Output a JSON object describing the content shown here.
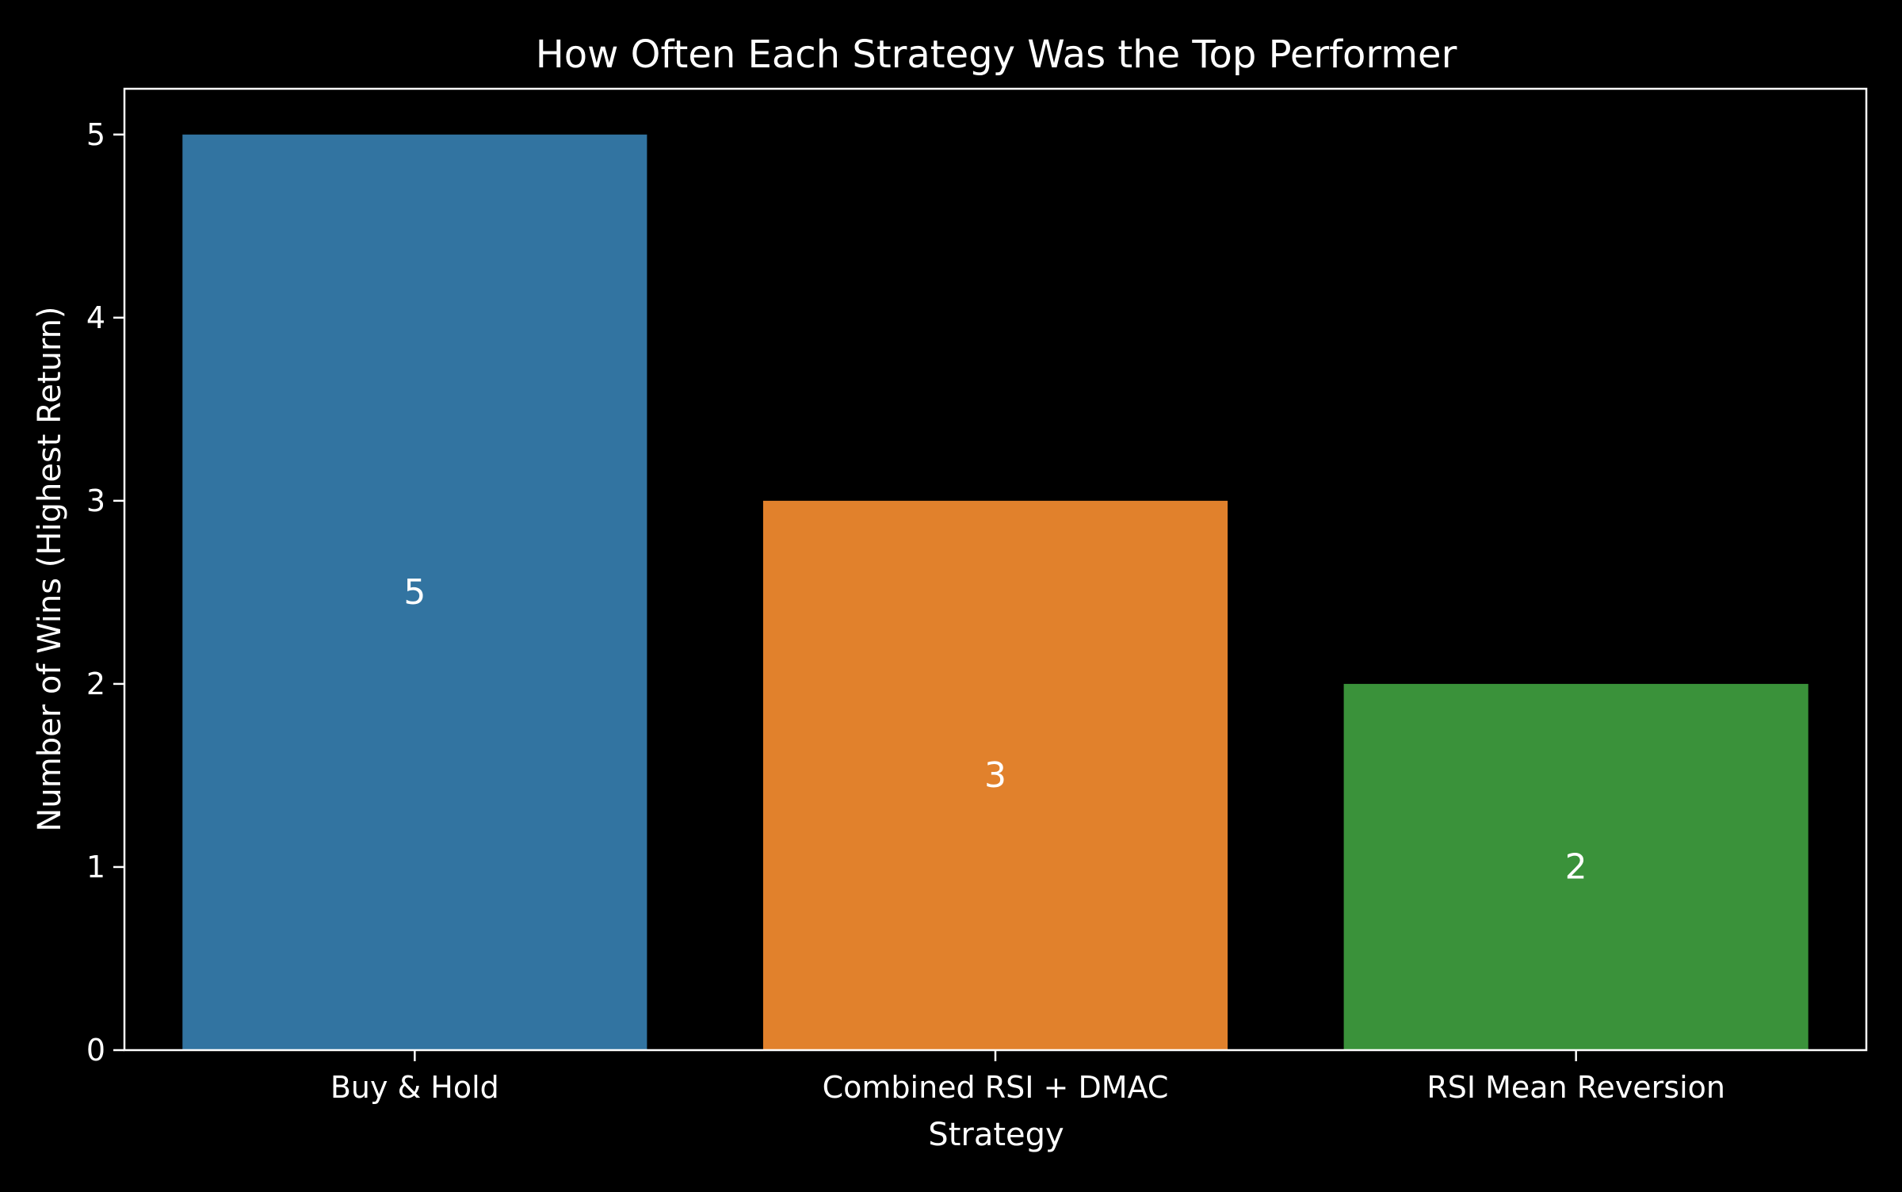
{
  "chart_data": {
    "type": "bar",
    "title": "How Often Each Strategy Was the Top Performer",
    "xlabel": "Strategy",
    "ylabel": "Number of Wins (Highest Return)",
    "categories": [
      "Buy & Hold",
      "Combined RSI + DMAC",
      "RSI Mean Reversion"
    ],
    "values": [
      5,
      3,
      2
    ],
    "data_labels": [
      "5",
      "3",
      "2"
    ],
    "colors": [
      "#3274a1",
      "#e1812c",
      "#3a923a"
    ],
    "ylim": [
      0,
      5.25
    ],
    "yticks": [
      0,
      1,
      2,
      3,
      4,
      5
    ],
    "ytick_labels": [
      "0",
      "1",
      "2",
      "3",
      "4",
      "5"
    ],
    "grid": false,
    "background": "#000000",
    "foreground": "#ffffff"
  }
}
